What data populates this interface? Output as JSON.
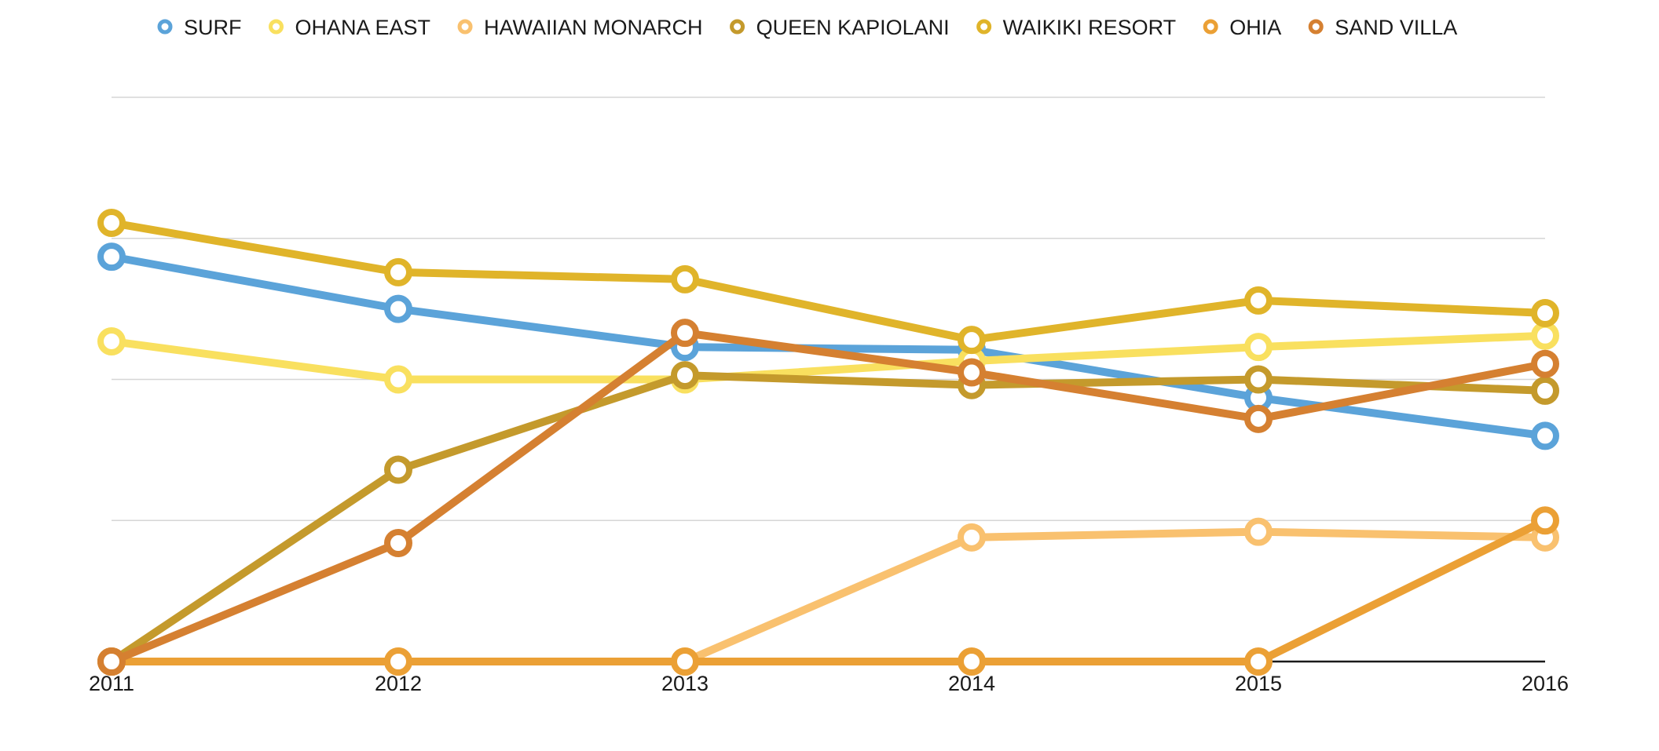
{
  "chart_data": {
    "type": "line",
    "x": [
      "2011",
      "2012",
      "2013",
      "2014",
      "2015",
      "2016"
    ],
    "ylim": [
      0,
      4
    ],
    "grid": true,
    "legend_position": "top",
    "series": [
      {
        "name": "SURF",
        "color": "#5ba3d9",
        "values": [
          2.87,
          2.5,
          2.23,
          2.21,
          1.87,
          1.6
        ]
      },
      {
        "name": "OHANA EAST",
        "color": "#f9e05f",
        "values": [
          2.27,
          2.0,
          2.0,
          2.13,
          2.23,
          2.31
        ]
      },
      {
        "name": "HAWAIIAN MONARCH",
        "color": "#f9c16f",
        "values": [
          0,
          0,
          0,
          0.88,
          0.92,
          0.88
        ]
      },
      {
        "name": "QUEEN KAPIOLANI",
        "color": "#c49a2c",
        "values": [
          0,
          1.36,
          2.03,
          1.96,
          2.0,
          1.92
        ]
      },
      {
        "name": "WAIKIKI RESORT",
        "color": "#e0b42a",
        "values": [
          3.11,
          2.76,
          2.71,
          2.28,
          2.56,
          2.47
        ]
      },
      {
        "name": "OHIA",
        "color": "#eba035",
        "values": [
          0,
          0,
          0,
          0,
          0,
          1.0
        ]
      },
      {
        "name": "SAND VILLA",
        "color": "#d58031",
        "values": [
          0,
          0.84,
          2.33,
          2.05,
          1.72,
          2.11
        ]
      }
    ]
  }
}
